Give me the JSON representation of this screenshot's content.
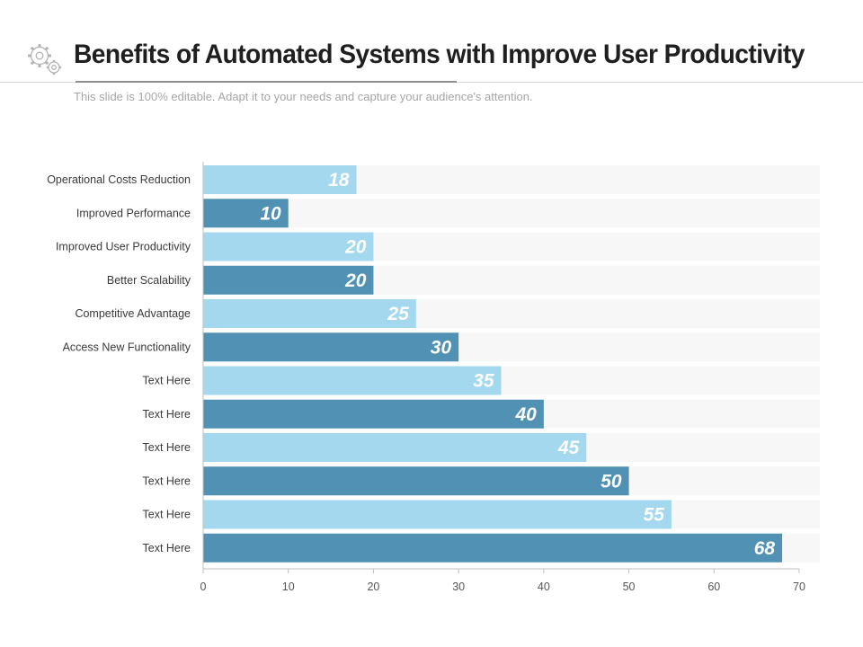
{
  "header": {
    "title": "Benefits of Automated Systems with Improve User Productivity",
    "subtitle": "This slide is 100% editable. Adapt it to your needs and capture your audience's attention."
  },
  "colors": {
    "bar_light": "#a3d8ef",
    "bar_dark": "#5191b3",
    "track": "#f7f7f7",
    "icon": "#b4b4b4"
  },
  "chart_data": {
    "type": "bar",
    "orientation": "horizontal",
    "categories": [
      "Operational Costs Reduction",
      "Improved Performance",
      "Improved User Productivity",
      "Better Scalability",
      "Competitive Advantage",
      "Access New Functionality",
      "Text Here",
      "Text Here",
      "Text Here",
      "Text Here",
      "Text Here",
      "Text Here"
    ],
    "values": [
      18,
      10,
      20,
      20,
      25,
      30,
      35,
      40,
      45,
      50,
      55,
      68
    ],
    "xlim": [
      0,
      70
    ],
    "xticks": [
      0,
      10,
      20,
      30,
      40,
      50,
      60,
      70
    ],
    "title": "",
    "xlabel": "",
    "ylabel": "",
    "grid": false,
    "legend": "none"
  }
}
